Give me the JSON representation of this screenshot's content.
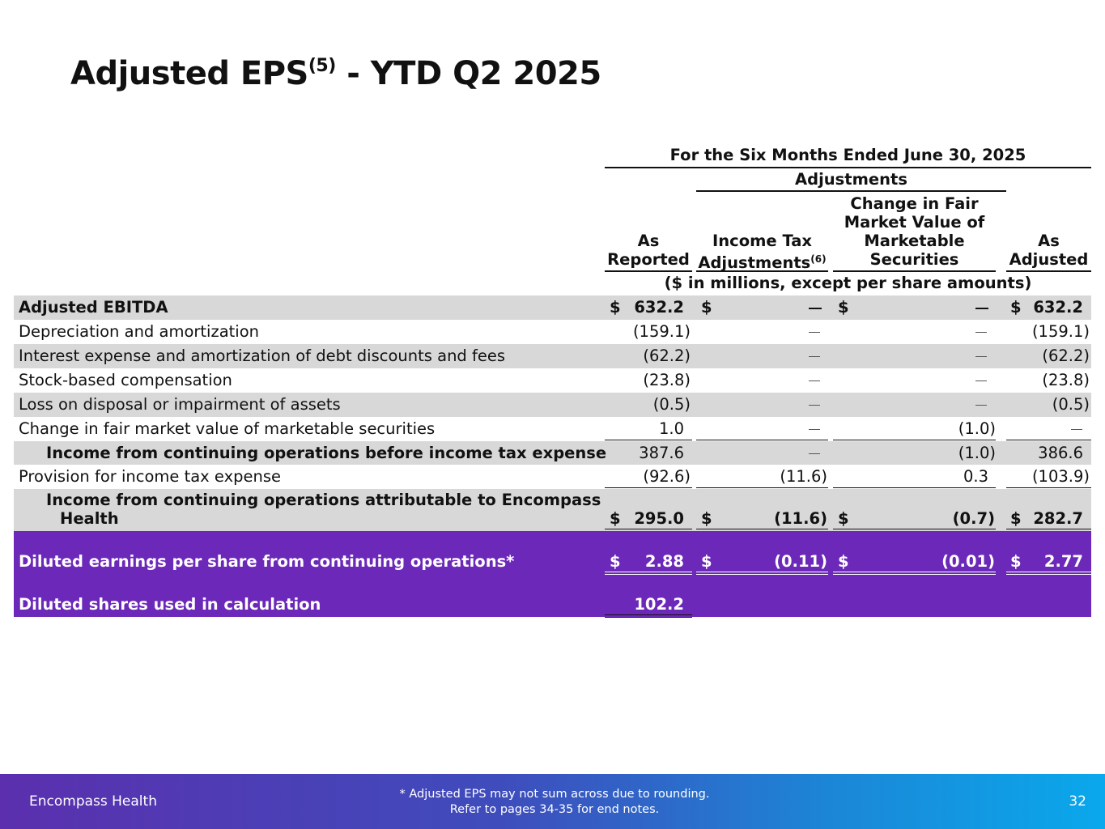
{
  "title": {
    "main": "Adjusted EPS",
    "sup": "(5)",
    "rest": " - YTD Q2 2025"
  },
  "header": {
    "period": "For the Six Months Ended June 30, 2025",
    "adjustments": "Adjustments",
    "columns": {
      "as_reported": [
        "As",
        "Reported"
      ],
      "income_tax": [
        "Income Tax",
        "Adjustments"
      ],
      "income_tax_sup": "(6)",
      "fmv": [
        "Change in Fair",
        "Market Value of",
        "Marketable",
        "Securities"
      ],
      "as_adjusted": [
        "As",
        "Adjusted"
      ]
    },
    "units": "($ in millions, except per share amounts)"
  },
  "rows": [
    {
      "label": "Adjusted EBITDA",
      "as_reported": "632.2",
      "income_tax": "—",
      "fmv": "—",
      "as_adjusted": "632.2",
      "dollar": "$"
    },
    {
      "label": "Depreciation and amortization",
      "as_reported": "(159.1)",
      "income_tax": "—",
      "fmv": "—",
      "as_adjusted": "(159.1)"
    },
    {
      "label": "Interest expense and amortization of debt discounts and fees",
      "as_reported": "(62.2)",
      "income_tax": "—",
      "fmv": "—",
      "as_adjusted": "(62.2)"
    },
    {
      "label": "Stock-based compensation",
      "as_reported": "(23.8)",
      "income_tax": "—",
      "fmv": "—",
      "as_adjusted": "(23.8)"
    },
    {
      "label": "Loss on disposal or impairment of assets",
      "as_reported": "(0.5)",
      "income_tax": "—",
      "fmv": "—",
      "as_adjusted": "(0.5)"
    },
    {
      "label": "Change in fair market value of marketable securities",
      "as_reported": "1.0",
      "income_tax": "—",
      "fmv": "(1.0)",
      "as_adjusted": "—"
    },
    {
      "label": "Income from continuing operations before income tax expense",
      "as_reported": "387.6",
      "income_tax": "—",
      "fmv": "(1.0)",
      "as_adjusted": "386.6"
    },
    {
      "label": "Provision for income tax expense",
      "as_reported": "(92.6)",
      "income_tax": "(11.6)",
      "fmv": "0.3",
      "as_adjusted": "(103.9)"
    },
    {
      "label_line1": "Income from continuing operations attributable to Encompass",
      "label_line2": "Health",
      "as_reported": "295.0",
      "income_tax": "(11.6)",
      "fmv": "(0.7)",
      "as_adjusted": "282.7",
      "dollar": "$"
    },
    {
      "label": "Diluted earnings per share from continuing operations*",
      "as_reported": "2.88",
      "income_tax": "(0.11)",
      "fmv": "(0.01)",
      "as_adjusted": "2.77",
      "dollar": "$"
    },
    {
      "label": "Diluted shares used in calculation",
      "as_reported": "102.2"
    }
  ],
  "footer": {
    "brand": "Encompass Health",
    "note_line1": "*  Adjusted EPS may not sum across due to rounding.",
    "note_line2": "Refer to pages 34-35 for end notes.",
    "page": "32"
  },
  "colors": {
    "purple_band": "#6c28b8",
    "shade": "#d8d8d8",
    "footer_start": "#5b2fae",
    "footer_end": "#0aa8ec"
  }
}
